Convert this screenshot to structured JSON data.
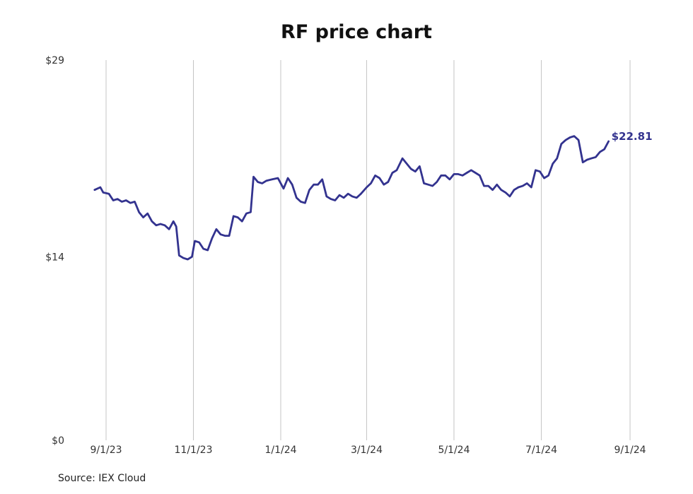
{
  "chart_data": {
    "type": "line",
    "title": "RF price chart",
    "source": "Source: IEX Cloud",
    "ylim": [
      0,
      29
    ],
    "y_ticks": [
      {
        "value": 29,
        "label": "$29"
      },
      {
        "value": 14,
        "label": "$14"
      },
      {
        "value": 0,
        "label": "$0"
      }
    ],
    "xlim": [
      "2023-08-24",
      "2024-09-30"
    ],
    "x_ticks": [
      {
        "date": "2023-09-01",
        "label": "9/1/23"
      },
      {
        "date": "2023-11-01",
        "label": "11/1/23"
      },
      {
        "date": "2024-01-01",
        "label": "1/1/24"
      },
      {
        "date": "2024-03-01",
        "label": "3/1/24"
      },
      {
        "date": "2024-05-01",
        "label": "5/1/24"
      },
      {
        "date": "2024-07-01",
        "label": "7/1/24"
      },
      {
        "date": "2024-09-01",
        "label": "9/1/24"
      }
    ],
    "grid": {
      "vertical": true,
      "horizontal": false
    },
    "last_value_label": "$22.81",
    "series": [
      {
        "color": "#33338f",
        "points": [
          [
            "2023-08-24",
            19.1
          ],
          [
            "2023-08-28",
            19.3
          ],
          [
            "2023-08-30",
            18.9
          ],
          [
            "2023-09-03",
            18.8
          ],
          [
            "2023-09-06",
            18.3
          ],
          [
            "2023-09-09",
            18.4
          ],
          [
            "2023-09-12",
            18.2
          ],
          [
            "2023-09-15",
            18.3
          ],
          [
            "2023-09-18",
            18.1
          ],
          [
            "2023-09-21",
            18.2
          ],
          [
            "2023-09-24",
            17.4
          ],
          [
            "2023-09-27",
            17.0
          ],
          [
            "2023-09-30",
            17.3
          ],
          [
            "2023-10-03",
            16.7
          ],
          [
            "2023-10-06",
            16.4
          ],
          [
            "2023-10-09",
            16.5
          ],
          [
            "2023-10-12",
            16.4
          ],
          [
            "2023-10-15",
            16.1
          ],
          [
            "2023-10-18",
            16.7
          ],
          [
            "2023-10-20",
            16.3
          ],
          [
            "2023-10-22",
            14.1
          ],
          [
            "2023-10-25",
            13.9
          ],
          [
            "2023-10-28",
            13.8
          ],
          [
            "2023-10-31",
            14.0
          ],
          [
            "2023-11-02",
            15.2
          ],
          [
            "2023-11-05",
            15.1
          ],
          [
            "2023-11-08",
            14.6
          ],
          [
            "2023-11-11",
            14.5
          ],
          [
            "2023-11-14",
            15.4
          ],
          [
            "2023-11-17",
            16.1
          ],
          [
            "2023-11-20",
            15.7
          ],
          [
            "2023-11-23",
            15.6
          ],
          [
            "2023-11-26",
            15.6
          ],
          [
            "2023-11-29",
            17.1
          ],
          [
            "2023-12-02",
            17.0
          ],
          [
            "2023-12-05",
            16.7
          ],
          [
            "2023-12-08",
            17.3
          ],
          [
            "2023-12-11",
            17.4
          ],
          [
            "2023-12-13",
            20.1
          ],
          [
            "2023-12-16",
            19.7
          ],
          [
            "2023-12-19",
            19.6
          ],
          [
            "2023-12-22",
            19.8
          ],
          [
            "2023-12-26",
            19.9
          ],
          [
            "2023-12-30",
            20.0
          ],
          [
            "2024-01-03",
            19.2
          ],
          [
            "2024-01-06",
            20.0
          ],
          [
            "2024-01-09",
            19.5
          ],
          [
            "2024-01-12",
            18.5
          ],
          [
            "2024-01-15",
            18.2
          ],
          [
            "2024-01-18",
            18.1
          ],
          [
            "2024-01-21",
            19.1
          ],
          [
            "2024-01-24",
            19.5
          ],
          [
            "2024-01-27",
            19.5
          ],
          [
            "2024-01-30",
            19.9
          ],
          [
            "2024-02-02",
            18.6
          ],
          [
            "2024-02-05",
            18.4
          ],
          [
            "2024-02-08",
            18.3
          ],
          [
            "2024-02-11",
            18.7
          ],
          [
            "2024-02-14",
            18.5
          ],
          [
            "2024-02-17",
            18.8
          ],
          [
            "2024-02-20",
            18.6
          ],
          [
            "2024-02-23",
            18.5
          ],
          [
            "2024-02-26",
            18.8
          ],
          [
            "2024-03-01",
            19.3
          ],
          [
            "2024-03-04",
            19.6
          ],
          [
            "2024-03-07",
            20.2
          ],
          [
            "2024-03-10",
            20.0
          ],
          [
            "2024-03-13",
            19.5
          ],
          [
            "2024-03-16",
            19.7
          ],
          [
            "2024-03-19",
            20.4
          ],
          [
            "2024-03-22",
            20.6
          ],
          [
            "2024-03-26",
            21.5
          ],
          [
            "2024-03-29",
            21.1
          ],
          [
            "2024-04-01",
            20.7
          ],
          [
            "2024-04-04",
            20.5
          ],
          [
            "2024-04-07",
            20.9
          ],
          [
            "2024-04-10",
            19.6
          ],
          [
            "2024-04-13",
            19.5
          ],
          [
            "2024-04-16",
            19.4
          ],
          [
            "2024-04-19",
            19.7
          ],
          [
            "2024-04-22",
            20.2
          ],
          [
            "2024-04-25",
            20.2
          ],
          [
            "2024-04-28",
            19.9
          ],
          [
            "2024-05-01",
            20.3
          ],
          [
            "2024-05-04",
            20.3
          ],
          [
            "2024-05-07",
            20.2
          ],
          [
            "2024-05-10",
            20.4
          ],
          [
            "2024-05-13",
            20.6
          ],
          [
            "2024-05-16",
            20.4
          ],
          [
            "2024-05-19",
            20.2
          ],
          [
            "2024-05-22",
            19.4
          ],
          [
            "2024-05-25",
            19.4
          ],
          [
            "2024-05-28",
            19.1
          ],
          [
            "2024-05-31",
            19.5
          ],
          [
            "2024-06-03",
            19.1
          ],
          [
            "2024-06-06",
            18.9
          ],
          [
            "2024-06-09",
            18.6
          ],
          [
            "2024-06-12",
            19.1
          ],
          [
            "2024-06-15",
            19.3
          ],
          [
            "2024-06-18",
            19.4
          ],
          [
            "2024-06-21",
            19.6
          ],
          [
            "2024-06-24",
            19.3
          ],
          [
            "2024-06-27",
            20.6
          ],
          [
            "2024-06-30",
            20.5
          ],
          [
            "2024-07-03",
            20.0
          ],
          [
            "2024-07-06",
            20.2
          ],
          [
            "2024-07-09",
            21.1
          ],
          [
            "2024-07-12",
            21.5
          ],
          [
            "2024-07-15",
            22.6
          ],
          [
            "2024-07-18",
            22.9
          ],
          [
            "2024-07-21",
            23.1
          ],
          [
            "2024-07-24",
            23.2
          ],
          [
            "2024-07-27",
            22.9
          ],
          [
            "2024-07-30",
            21.2
          ],
          [
            "2024-08-02",
            21.4
          ],
          [
            "2024-08-05",
            21.5
          ],
          [
            "2024-08-08",
            21.6
          ],
          [
            "2024-08-11",
            22.0
          ],
          [
            "2024-08-14",
            22.2
          ],
          [
            "2024-08-17",
            22.8
          ]
        ]
      }
    ]
  }
}
